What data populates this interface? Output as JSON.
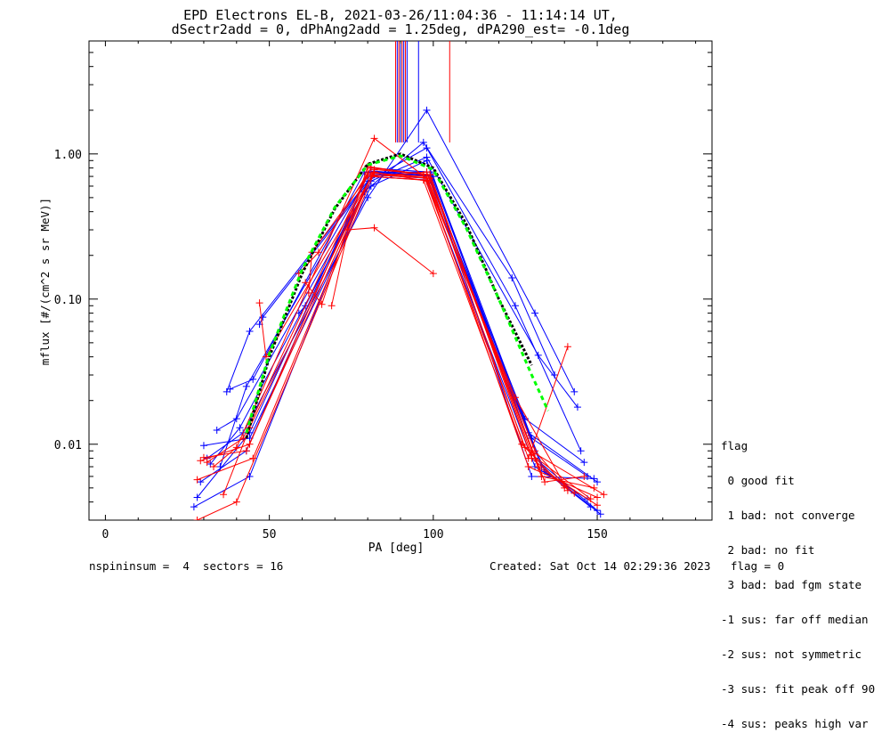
{
  "header": {
    "title_line1": "EPD Electrons EL-B, 2021-03-26/11:04:36 - 11:14:14 UT,",
    "title_line2": "dSectr2add = 0, dPhAng2add = 1.25deg, dPA290_est=  -0.1deg"
  },
  "legend": {
    "title": "flag",
    "items": [
      " 0 good fit",
      " 1 bad: not converge",
      " 2 bad: no fit",
      " 3 bad: bad fgm state",
      "-1 sus: far off median",
      "-2 sus: not symmetric",
      "-3 sus: fit peak off 90",
      "-4 sus: peaks high var"
    ]
  },
  "footer": {
    "left": "nspininsum =  4  sectors = 16",
    "right": "Created: Sat Oct 14 02:29:36 2023   flag = 0"
  },
  "colors": {
    "red": "#ff0000",
    "blue": "#0000ff",
    "green": "#00ff00",
    "black": "#000000"
  },
  "chart_data": {
    "type": "line",
    "xlabel": "PA [deg]",
    "ylabel": "mflux [#/(cm^2 s sr MeV)]",
    "xlim": [
      -5,
      185
    ],
    "ylim": [
      0.003,
      6.0
    ],
    "yscale": "log",
    "xticks": [
      0,
      50,
      100,
      150
    ],
    "yticks": [
      {
        "v": 0.01,
        "label": "0.01"
      },
      {
        "v": 0.1,
        "label": "0.10"
      },
      {
        "v": 1.0,
        "label": "1.00"
      }
    ],
    "vertical_markers": [
      {
        "x": 88.5,
        "color": "red"
      },
      {
        "x": 89.0,
        "color": "blue"
      },
      {
        "x": 89.5,
        "color": "red"
      },
      {
        "x": 90.0,
        "color": "blue"
      },
      {
        "x": 90.5,
        "color": "red"
      },
      {
        "x": 91.0,
        "color": "blue"
      },
      {
        "x": 91.5,
        "color": "red"
      },
      {
        "x": 92.0,
        "color": "blue"
      },
      {
        "x": 95.5,
        "color": "blue"
      },
      {
        "x": 105.0,
        "color": "red"
      }
    ],
    "vertical_marker_range": [
      1.2,
      6.0
    ],
    "series": [
      {
        "color": "blue",
        "points": [
          [
            27,
            0.0037
          ],
          [
            44,
            0.006
          ],
          [
            81,
            0.75
          ],
          [
            100,
            0.7
          ],
          [
            131,
            0.008
          ],
          [
            150,
            0.0035
          ]
        ]
      },
      {
        "color": "blue",
        "points": [
          [
            28,
            0.0043
          ],
          [
            44,
            0.012
          ],
          [
            81,
            0.8
          ],
          [
            99,
            0.75
          ],
          [
            133,
            0.007
          ],
          [
            151,
            0.0033
          ]
        ]
      },
      {
        "color": "blue",
        "points": [
          [
            29,
            0.0055
          ],
          [
            43,
            0.009
          ],
          [
            80,
            0.72
          ],
          [
            98,
            0.68
          ],
          [
            134,
            0.0065
          ],
          [
            148,
            0.0037
          ]
        ]
      },
      {
        "color": "blue",
        "points": [
          [
            30,
            0.0098
          ],
          [
            44,
            0.011
          ],
          [
            81,
            0.6
          ],
          [
            98,
            0.9
          ],
          [
            130,
            0.011
          ],
          [
            147,
            0.006
          ]
        ]
      },
      {
        "color": "blue",
        "points": [
          [
            31,
            0.008
          ],
          [
            42,
            0.012
          ],
          [
            80,
            0.5
          ],
          [
            98,
            2.0
          ],
          [
            131,
            0.08
          ],
          [
            143,
            0.023
          ]
        ]
      },
      {
        "color": "blue",
        "points": [
          [
            32,
            0.0073
          ],
          [
            41,
            0.013
          ],
          [
            81,
            0.65
          ],
          [
            98,
            0.95
          ],
          [
            132,
            0.041
          ],
          [
            144,
            0.018
          ]
        ]
      },
      {
        "color": "blue",
        "points": [
          [
            34,
            0.0125
          ],
          [
            40,
            0.015
          ],
          [
            79,
            0.55
          ],
          [
            97,
            1.2
          ],
          [
            124,
            0.14
          ],
          [
            137,
            0.03
          ]
        ]
      },
      {
        "color": "blue",
        "points": [
          [
            37,
            0.023
          ],
          [
            44,
            0.06
          ],
          [
            80,
            0.65
          ],
          [
            98,
            1.1
          ],
          [
            125,
            0.09
          ],
          [
            145,
            0.009
          ]
        ]
      },
      {
        "color": "blue",
        "points": [
          [
            38,
            0.024
          ],
          [
            45,
            0.028
          ],
          [
            79,
            0.75
          ],
          [
            98,
            0.75
          ],
          [
            128,
            0.015
          ],
          [
            146,
            0.0075
          ]
        ]
      },
      {
        "color": "blue",
        "points": [
          [
            47,
            0.067
          ],
          [
            48,
            0.075
          ],
          [
            82,
            0.72
          ],
          [
            97,
            0.72
          ],
          [
            131,
            0.007
          ],
          [
            147,
            0.0042
          ]
        ]
      },
      {
        "color": "blue",
        "points": [
          [
            59,
            0.08
          ],
          [
            61,
            0.09
          ],
          [
            82,
            0.76
          ],
          [
            99,
            0.71
          ],
          [
            130,
            0.006
          ],
          [
            149,
            0.0058
          ]
        ]
      },
      {
        "color": "blue",
        "points": [
          [
            35,
            0.007
          ],
          [
            43,
            0.025
          ],
          [
            80,
            0.7
          ],
          [
            99,
            0.66
          ],
          [
            129,
            0.012
          ],
          [
            150,
            0.0055
          ]
        ]
      },
      {
        "color": "red",
        "points": [
          [
            28,
            0.0057
          ],
          [
            45,
            0.008
          ],
          [
            81,
            0.7
          ],
          [
            98,
            0.66
          ],
          [
            129,
            0.007
          ],
          [
            150,
            0.0043
          ]
        ]
      },
      {
        "color": "red",
        "points": [
          [
            29,
            0.0077
          ],
          [
            44,
            0.01
          ],
          [
            80,
            0.72
          ],
          [
            99,
            0.68
          ],
          [
            133,
            0.006
          ],
          [
            149,
            0.005
          ]
        ]
      },
      {
        "color": "red",
        "points": [
          [
            30,
            0.0081
          ],
          [
            43,
            0.009
          ],
          [
            82,
            0.78
          ],
          [
            99,
            0.72
          ],
          [
            130,
            0.0085
          ],
          [
            148,
            0.0042
          ]
        ]
      },
      {
        "color": "red",
        "points": [
          [
            31,
            0.0075
          ],
          [
            42,
            0.011
          ],
          [
            80,
            0.74
          ],
          [
            98,
            0.7
          ],
          [
            134,
            0.0055
          ],
          [
            146,
            0.006
          ]
        ]
      },
      {
        "color": "red",
        "points": [
          [
            33,
            0.007
          ],
          [
            40,
            0.0095
          ],
          [
            82,
            1.28
          ],
          [
            98,
            0.68
          ],
          [
            131,
            0.009
          ],
          [
            140,
            0.0052
          ]
        ]
      },
      {
        "color": "red",
        "points": [
          [
            36,
            0.0045
          ],
          [
            44,
            0.013
          ],
          [
            81,
            0.7
          ],
          [
            97,
            0.66
          ],
          [
            127,
            0.01
          ],
          [
            140,
            0.005
          ]
        ]
      },
      {
        "color": "red",
        "points": [
          [
            47,
            0.094
          ],
          [
            49,
            0.04
          ],
          [
            82,
            0.75
          ],
          [
            98,
            0.65
          ],
          [
            125,
            0.021
          ],
          [
            141,
            0.0048
          ]
        ]
      },
      {
        "color": "red",
        "points": [
          [
            59,
            0.15
          ],
          [
            65,
            0.21
          ],
          [
            81,
            0.8
          ],
          [
            99,
            0.72
          ],
          [
            130,
            0.008
          ],
          [
            143,
            0.0046
          ]
        ]
      },
      {
        "color": "red",
        "points": [
          [
            61,
            0.13
          ],
          [
            66,
            0.092
          ],
          [
            80,
            0.82
          ],
          [
            97,
            0.72
          ],
          [
            128,
            0.0095
          ],
          [
            152,
            0.0045
          ]
        ]
      },
      {
        "color": "red",
        "points": [
          [
            62,
            0.11
          ],
          [
            63,
            0.21
          ],
          [
            80,
            0.7
          ],
          [
            98,
            0.75
          ],
          [
            129,
            0.008
          ],
          [
            141,
            0.047
          ]
        ]
      },
      {
        "color": "red",
        "points": [
          [
            69,
            0.09
          ],
          [
            74,
            0.3
          ],
          [
            82,
            0.31
          ],
          [
            100,
            0.15
          ]
        ]
      },
      {
        "color": "red",
        "points": [
          [
            28,
            0.003
          ],
          [
            40,
            0.004
          ],
          [
            82,
            0.74
          ],
          [
            99,
            0.68
          ],
          [
            132,
            0.007
          ],
          [
            150,
            0.0038
          ]
        ]
      }
    ],
    "fit_black": {
      "color": "black",
      "points": [
        [
          43,
          0.011
        ],
        [
          50,
          0.04
        ],
        [
          60,
          0.15
        ],
        [
          70,
          0.42
        ],
        [
          80,
          0.85
        ],
        [
          90,
          1.0
        ],
        [
          100,
          0.8
        ],
        [
          110,
          0.33
        ],
        [
          120,
          0.1
        ],
        [
          130,
          0.035
        ]
      ]
    },
    "fit_green": {
      "color": "green",
      "points": [
        [
          43,
          0.012
        ],
        [
          50,
          0.042
        ],
        [
          60,
          0.16
        ],
        [
          70,
          0.43
        ],
        [
          80,
          0.84
        ],
        [
          90,
          0.97
        ],
        [
          100,
          0.78
        ],
        [
          110,
          0.31
        ],
        [
          120,
          0.1
        ],
        [
          130,
          0.03
        ],
        [
          135,
          0.017
        ]
      ]
    }
  }
}
